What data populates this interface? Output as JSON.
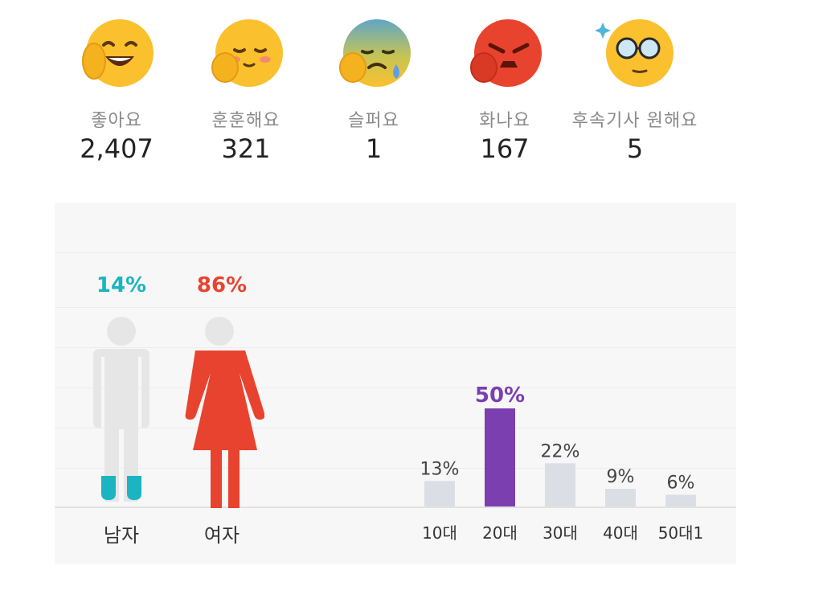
{
  "reactions": [
    {
      "icon": "laughing-emoji-icon",
      "label": "좋아요",
      "count": "2,407"
    },
    {
      "icon": "blushing-emoji-icon",
      "label": "훈훈해요",
      "count": "321"
    },
    {
      "icon": "sad-emoji-icon",
      "label": "슬퍼요",
      "count": "1"
    },
    {
      "icon": "angry-emoji-icon",
      "label": "화나요",
      "count": "167"
    },
    {
      "icon": "glasses-emoji-icon",
      "label": "후속기사 원해요",
      "count": "5"
    }
  ],
  "colors": {
    "male": "#1ab5c0",
    "female": "#e8432f",
    "highlight": "#7b3fb0",
    "neutral_bar": "#dcdee6",
    "figure_gray": "#e6e6e6"
  },
  "chart_data": [
    {
      "type": "bar",
      "title": "",
      "categories": [
        "남자",
        "여자"
      ],
      "values": [
        14,
        86
      ],
      "value_labels": [
        "14%",
        "86%"
      ],
      "unit": "%"
    },
    {
      "type": "bar",
      "title": "",
      "categories": [
        "10대",
        "20대",
        "30대",
        "40대",
        "50대1"
      ],
      "values": [
        13,
        50,
        22,
        9,
        6
      ],
      "value_labels": [
        "13%",
        "50%",
        "22%",
        "9%",
        "6%"
      ],
      "unit": "%",
      "highlight_index": 1
    }
  ]
}
